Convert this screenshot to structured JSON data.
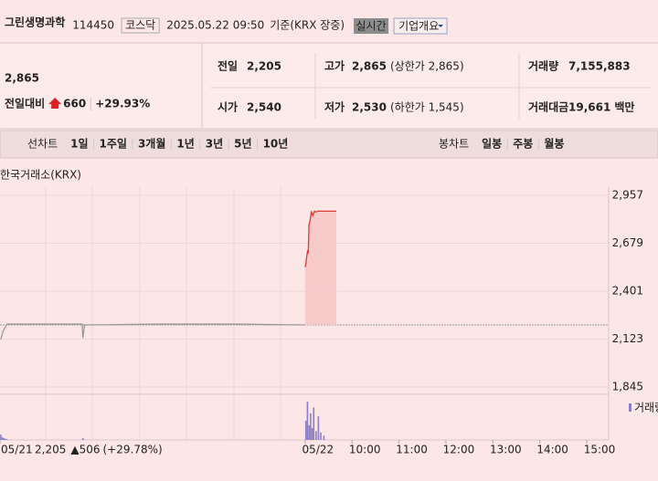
{
  "header": {
    "name": "그린생명과학",
    "code": "114450",
    "market": "코스닥",
    "datetime": "2025.05.22 09:50",
    "basis": "기준(KRX 장중)",
    "realtime": "실시간",
    "company_info": "기업개요"
  },
  "quote": {
    "price": "2,865",
    "change_label": "전일대비",
    "change": "660",
    "change_pct": "+29.93%"
  },
  "stats": [
    {
      "label": "전일",
      "value": "2,205"
    },
    {
      "label": "고가",
      "value": "2,865",
      "note": "(상한가 2,865)"
    },
    {
      "label": "거래량",
      "value": "7,155,883"
    },
    {
      "label": "시가",
      "value": "2,540"
    },
    {
      "label": "저가",
      "value": "2,530",
      "note": "(하한가 1,545)"
    },
    {
      "label": "거래대금",
      "value": "19,661",
      "unit": "백만"
    }
  ],
  "tabs": {
    "line": "선차트",
    "line_periods": [
      "1일",
      "1주일",
      "3개월",
      "1년",
      "3년",
      "5년",
      "10년"
    ],
    "candle": "봉차트",
    "candle_periods": [
      "일봉",
      "주봉",
      "월봉"
    ]
  },
  "chart": {
    "type": "line",
    "source": "한국거래소(KRX)",
    "xlim": [
      0,
      780
    ],
    "xticks": [
      {
        "value": 0,
        "label": "05/21"
      },
      {
        "value": 390,
        "label": "05/22"
      },
      {
        "value": 450,
        "label": "10:00"
      },
      {
        "value": 510,
        "label": "11:00"
      },
      {
        "value": 570,
        "label": "12:00"
      },
      {
        "value": 630,
        "label": "13:00"
      },
      {
        "value": 690,
        "label": "14:00"
      },
      {
        "value": 750,
        "label": "15:00"
      }
    ],
    "ylim": [
      1845,
      2957
    ],
    "yticks": [
      {
        "value": 1845,
        "label": "1,845"
      },
      {
        "value": 2123,
        "label": "2,123"
      },
      {
        "value": 2401,
        "label": "2,401"
      },
      {
        "value": 2679,
        "label": "2,679"
      },
      {
        "value": 2957,
        "label": "2,957"
      }
    ],
    "reference": 2205,
    "series": [
      {
        "color": "#9a9a9a",
        "x": [
          1,
          4,
          9,
          60,
          105,
          106,
          108,
          200,
          300,
          389
        ],
        "values": [
          2120,
          2170,
          2210,
          2210,
          2210,
          2130,
          2205,
          2210,
          2210,
          2205
        ]
      },
      {
        "color": "#e53935",
        "fill": "#f6c4c4",
        "x": [
          390,
          391,
          392,
          393,
          394,
          395,
          396,
          397,
          398,
          399,
          400,
          402,
          404,
          406,
          410,
          420,
          430
        ],
        "values": [
          2540,
          2560,
          2600,
          2630,
          2620,
          2790,
          2800,
          2830,
          2865,
          2850,
          2840,
          2865,
          2860,
          2865,
          2865,
          2865,
          2865
        ]
      }
    ],
    "volume": {
      "label": "거래량",
      "color": "#8b7fc4",
      "x": [
        1,
        3,
        5,
        7,
        9,
        106,
        391,
        393,
        395,
        397,
        399,
        401,
        404,
        407,
        410,
        414
      ],
      "values": [
        180000,
        90000,
        60000,
        40000,
        30000,
        60000,
        650000,
        1300000,
        500000,
        900000,
        400000,
        1100000,
        300000,
        800000,
        250000,
        150000
      ]
    },
    "info": {
      "price": "2,205",
      "change": "▲506",
      "change_pct": "(+29.78%)"
    }
  }
}
